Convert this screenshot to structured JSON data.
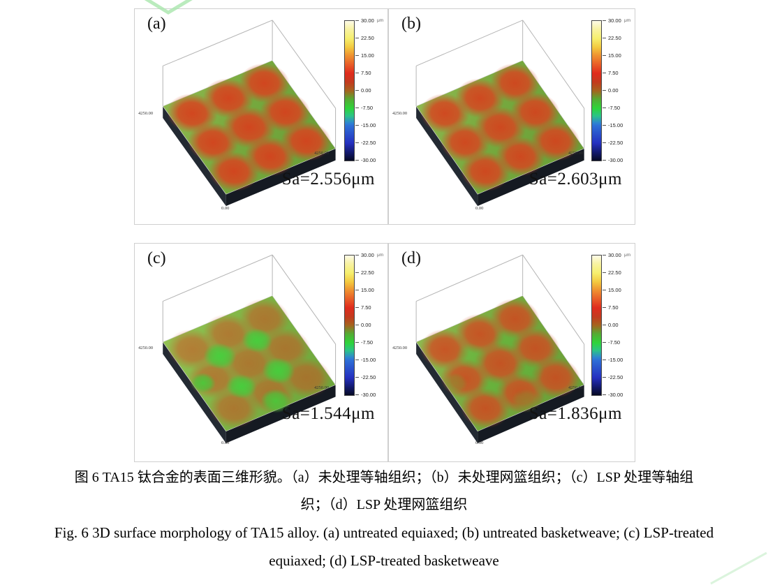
{
  "figure": {
    "panels": [
      {
        "label": "(a)",
        "sa": "Sa=2.556μm",
        "axis_left": "4250.00",
        "axis_right": "4250.00",
        "axis_bottom": "0.00"
      },
      {
        "label": "(b)",
        "sa": "Sa=2.603μm",
        "axis_left": "4250.00",
        "axis_right": "4250.00",
        "axis_bottom": "0.00"
      },
      {
        "label": "(c)",
        "sa": "Sa=1.544μm",
        "axis_left": "4250.00",
        "axis_right": "4250.00",
        "axis_bottom": "0.00"
      },
      {
        "label": "(d)",
        "sa": "Sa=1.836μm",
        "axis_left": "4250.00",
        "axis_right": "4250.00",
        "axis_bottom": "0.00"
      }
    ],
    "colorbar": {
      "unit": "μm",
      "ticks": [
        "30.00",
        "22.50",
        "15.00",
        "7.50",
        "0.00",
        "-7.50",
        "-15.00",
        "-22.50",
        "-30.00"
      ]
    }
  },
  "caption": {
    "zh_line1": "图 6 TA15 钛合金的表面三维形貌。（a）未处理等轴组织；（b）未处理网篮组织；（c）LSP 处理等轴组",
    "zh_line2": "织；（d）LSP 处理网篮组织",
    "en_line1": "Fig. 6 3D surface morphology of TA15 alloy. (a) untreated equiaxed; (b) untreated basketweave; (c) LSP-treated",
    "en_line2": "equiaxed; (d) LSP-treated basketweave"
  },
  "chart_data": {
    "type": "heatmap",
    "subtype": "3d-surface-morphology-grid",
    "panels": [
      {
        "id": "a",
        "condition": "untreated equiaxed",
        "Sa_um": 2.556,
        "appearance": "3x3 strong red bumps on green base"
      },
      {
        "id": "b",
        "condition": "untreated basketweave",
        "Sa_um": 2.603,
        "appearance": "3x3 strong red bumps on green base"
      },
      {
        "id": "c",
        "condition": "LSP-treated equiaxed",
        "Sa_um": 1.544,
        "appearance": "faint red patches, mostly green smoother surface"
      },
      {
        "id": "d",
        "condition": "LSP-treated basketweave",
        "Sa_um": 1.836,
        "appearance": "moderate red bumps on green base"
      }
    ],
    "colorbar": {
      "unit": "μm",
      "min": -30.0,
      "max": 30.0,
      "tick_step": 7.5,
      "gradient_top_to_bottom": [
        "#fdfbe8",
        "#f6ef6e",
        "#ef9030",
        "#e02b1d",
        "#a5641f",
        "#2ed43a",
        "#2e6fd6",
        "#2530c0",
        "#060a24"
      ]
    },
    "lateral_extent_um": [
      0,
      4250
    ]
  }
}
